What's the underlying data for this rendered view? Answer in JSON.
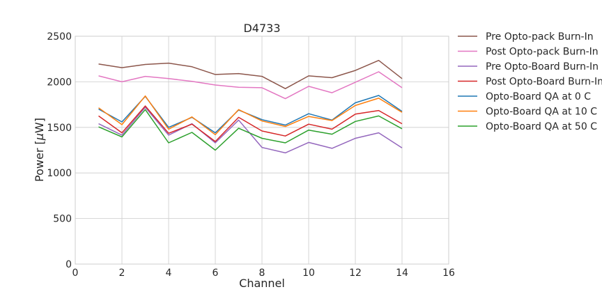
{
  "chart_data": {
    "type": "line",
    "title": "D4733",
    "xlabel": "Channel",
    "ylabel_prefix": "Power [",
    "ylabel_unit": "μ",
    "ylabel_suffix": "W]",
    "xlim": [
      0,
      16
    ],
    "ylim": [
      0,
      2500
    ],
    "xticks": [
      0,
      2,
      4,
      6,
      8,
      10,
      12,
      14,
      16
    ],
    "yticks": [
      0,
      500,
      1000,
      1500,
      2000,
      2500
    ],
    "grid": true,
    "legend_position": "outside-right",
    "x": [
      1,
      2,
      3,
      4,
      5,
      6,
      7,
      8,
      9,
      10,
      11,
      12,
      13,
      14
    ],
    "series": [
      {
        "name": "Pre Opto-pack Burn-In",
        "color": "#8c564b",
        "values": [
          2195,
          2155,
          2190,
          2205,
          2165,
          2080,
          2090,
          2060,
          1925,
          2065,
          2045,
          2125,
          2235,
          2035
        ]
      },
      {
        "name": "Post Opto-pack Burn-In",
        "color": "#e377c2",
        "values": [
          2065,
          2000,
          2060,
          2035,
          2005,
          1965,
          1940,
          1935,
          1815,
          1950,
          1880,
          1995,
          2110,
          1935
        ]
      },
      {
        "name": "Pre Opto-Board Burn-In",
        "color": "#9467bd",
        "values": [
          1540,
          1415,
          1720,
          1415,
          1540,
          1330,
          1580,
          1280,
          1220,
          1335,
          1270,
          1380,
          1440,
          1275
        ]
      },
      {
        "name": "Post Opto-Board Burn-In",
        "color": "#d62728",
        "values": [
          1625,
          1440,
          1735,
          1435,
          1535,
          1345,
          1610,
          1460,
          1405,
          1535,
          1480,
          1645,
          1685,
          1540
        ]
      },
      {
        "name": "Opto-Board QA at 0 C",
        "color": "#1f77b4",
        "values": [
          1700,
          1560,
          1840,
          1500,
          1610,
          1440,
          1690,
          1585,
          1525,
          1650,
          1580,
          1770,
          1850,
          1675
        ]
      },
      {
        "name": "Opto-Board QA at 10 C",
        "color": "#ff7f0e",
        "values": [
          1715,
          1530,
          1845,
          1480,
          1615,
          1420,
          1695,
          1570,
          1510,
          1620,
          1575,
          1740,
          1820,
          1665
        ]
      },
      {
        "name": "Opto-Board QA at 50 C",
        "color": "#2ca02c",
        "values": [
          1505,
          1395,
          1695,
          1330,
          1445,
          1250,
          1490,
          1380,
          1330,
          1470,
          1425,
          1565,
          1625,
          1485
        ]
      }
    ]
  }
}
